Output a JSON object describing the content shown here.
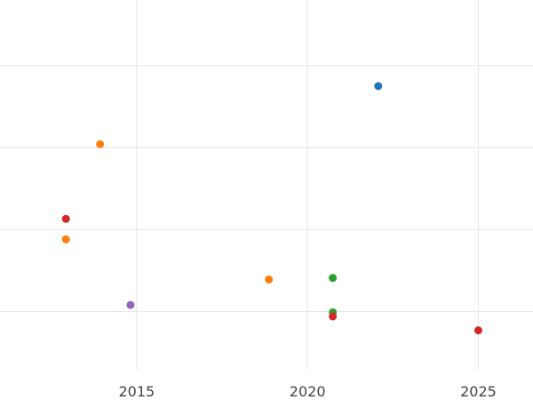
{
  "chart_data": {
    "type": "scatter",
    "title": "",
    "xlabel": "",
    "ylabel": "",
    "grid": true,
    "xlim": [
      2011.0,
      2026.6
    ],
    "ylim": [
      0.0,
      4.5
    ],
    "x_ticks": [
      2015,
      2020,
      2025
    ],
    "x_tick_labels": [
      "2015",
      "2020",
      "2025"
    ],
    "y_gridlines": [
      0.7,
      1.7,
      2.7,
      3.7
    ],
    "series": [
      {
        "color": "#1f77b4",
        "points": [
          {
            "x": 2022.07,
            "y": 3.45
          }
        ]
      },
      {
        "color": "#ff7f0e",
        "points": [
          {
            "x": 2013.93,
            "y": 2.74
          },
          {
            "x": 2012.93,
            "y": 1.58
          },
          {
            "x": 2018.87,
            "y": 1.09
          }
        ]
      },
      {
        "color": "#2ca02c",
        "points": [
          {
            "x": 2020.74,
            "y": 1.11
          },
          {
            "x": 2020.74,
            "y": 0.69
          }
        ]
      },
      {
        "color": "#d62728",
        "points": [
          {
            "x": 2012.93,
            "y": 1.83
          },
          {
            "x": 2020.74,
            "y": 0.64
          },
          {
            "x": 2025.0,
            "y": 0.47
          }
        ]
      },
      {
        "color": "#9467bd",
        "points": [
          {
            "x": 2014.82,
            "y": 0.78
          }
        ]
      }
    ]
  },
  "colors": {
    "background": "#ffffff",
    "grid": "#e6e6e6",
    "tick_text": "#444444"
  }
}
